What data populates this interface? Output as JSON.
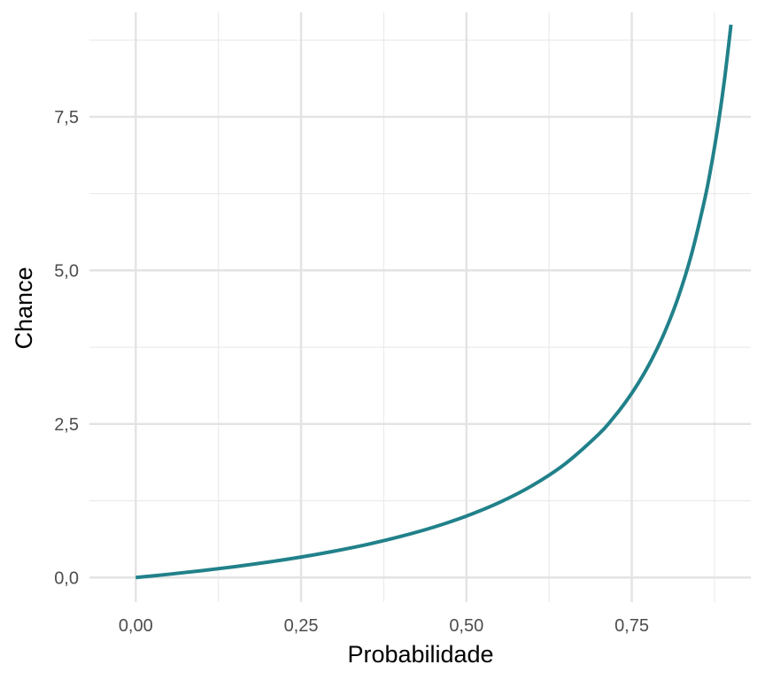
{
  "chart_data": {
    "type": "line",
    "title": "",
    "xlabel": "Probabilidade",
    "ylabel": "Chance",
    "xlim": [
      -0.07,
      0.93
    ],
    "ylim": [
      -0.4,
      9.2
    ],
    "grid": true,
    "legend": "none",
    "x_ticks": [
      0,
      0.25,
      0.5,
      0.75
    ],
    "x_tick_labels": [
      "0,00",
      "0,25",
      "0,50",
      "0,75"
    ],
    "y_ticks": [
      0,
      2.5,
      5,
      7.5
    ],
    "y_tick_labels": [
      "0,0",
      "2,5",
      "5,0",
      "7,5"
    ],
    "series": [
      {
        "color": "#21818a",
        "x": [
          0.0,
          0.05,
          0.1,
          0.15,
          0.2,
          0.25,
          0.3,
          0.35,
          0.4,
          0.45,
          0.5,
          0.55,
          0.6,
          0.65,
          0.7,
          0.72,
          0.74,
          0.76,
          0.78,
          0.8,
          0.82,
          0.84,
          0.86,
          0.87,
          0.88,
          0.89,
          0.9
        ],
        "y": [
          0.0,
          0.053,
          0.111,
          0.176,
          0.25,
          0.333,
          0.429,
          0.538,
          0.667,
          0.818,
          1.0,
          1.222,
          1.5,
          1.857,
          2.333,
          2.571,
          2.846,
          3.167,
          3.545,
          4.0,
          4.556,
          5.25,
          6.143,
          6.692,
          7.333,
          8.091,
          9.0
        ]
      }
    ]
  }
}
